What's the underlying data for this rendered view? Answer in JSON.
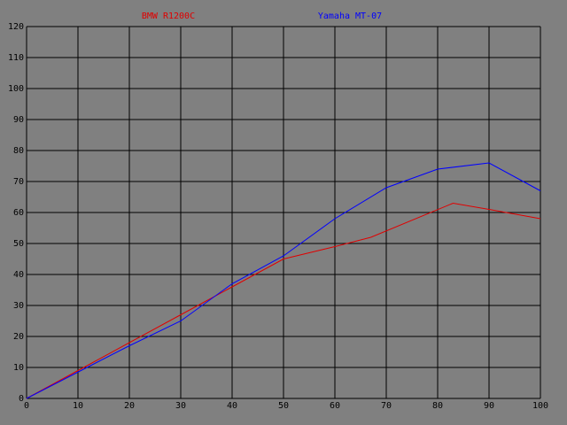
{
  "chart_data": {
    "type": "line",
    "series": [
      {
        "name": "BMW R1200C",
        "color": "#e00000",
        "x": [
          0,
          10,
          20,
          30,
          40,
          50,
          60,
          67,
          83,
          90,
          100
        ],
        "values": [
          0,
          9,
          18,
          27,
          36,
          45,
          49,
          52,
          63,
          61,
          58
        ]
      },
      {
        "name": "Yamaha MT-07",
        "color": "#0000ff",
        "x": [
          0,
          10,
          20,
          30,
          40,
          50,
          60,
          70,
          80,
          90,
          100
        ],
        "values": [
          0,
          8.5,
          17,
          25,
          37,
          46,
          58,
          68,
          74,
          76,
          67
        ]
      }
    ],
    "xlim": [
      0,
      100
    ],
    "xticks": [
      0,
      10,
      20,
      30,
      40,
      50,
      60,
      70,
      80,
      90,
      100
    ],
    "ylim": [
      0,
      120
    ],
    "yticks": [
      0,
      10,
      20,
      30,
      40,
      50,
      60,
      70,
      80,
      90,
      100,
      110,
      120
    ],
    "grid": true
  }
}
